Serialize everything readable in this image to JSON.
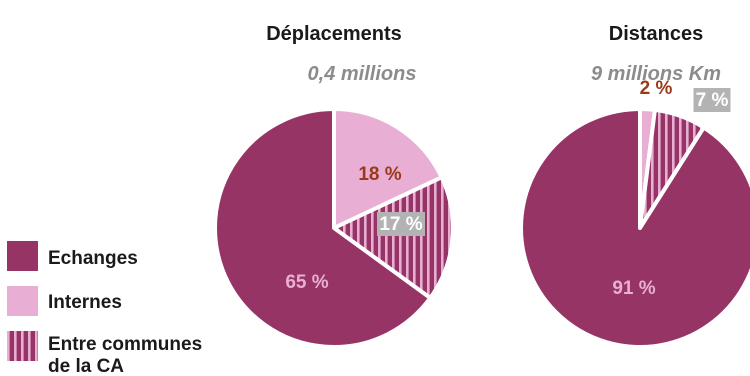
{
  "colors": {
    "echanges": "#963466",
    "internes": "#e8aed3",
    "entre": "#963466",
    "stripe_light": "#e8aed3",
    "label_light": "#e8aed3",
    "label_dark": "#9a3a1c",
    "label_white": "#ffffff",
    "label_box_gray": "#b3b3b3",
    "subtitle_gray": "#8c8c8c",
    "title_black": "#1a1a1a"
  },
  "legend": {
    "items": [
      {
        "label": "Echanges",
        "style": "solid",
        "color": "#963466"
      },
      {
        "label": "Internes",
        "style": "solid",
        "color": "#e8aed3"
      },
      {
        "label": "Entre communes de la CA",
        "style": "striped",
        "color": "#963466"
      }
    ]
  },
  "chart_data": [
    {
      "type": "pie",
      "title": "Déplacements",
      "subtitle": "0,4 millions",
      "slices": [
        {
          "category": "Internes",
          "value": 18,
          "label": "18 %"
        },
        {
          "category": "Entre communes de la CA",
          "value": 17,
          "label": "17 %"
        },
        {
          "category": "Echanges",
          "value": 65,
          "label": "65 %"
        }
      ]
    },
    {
      "type": "pie",
      "title": "Distances",
      "subtitle": "9 millions Km",
      "slices": [
        {
          "category": "Internes",
          "value": 2,
          "label": "2 %"
        },
        {
          "category": "Entre communes de la CA",
          "value": 7,
          "label": "7 %"
        },
        {
          "category": "Echanges",
          "value": 91,
          "label": "91 %"
        }
      ]
    }
  ]
}
